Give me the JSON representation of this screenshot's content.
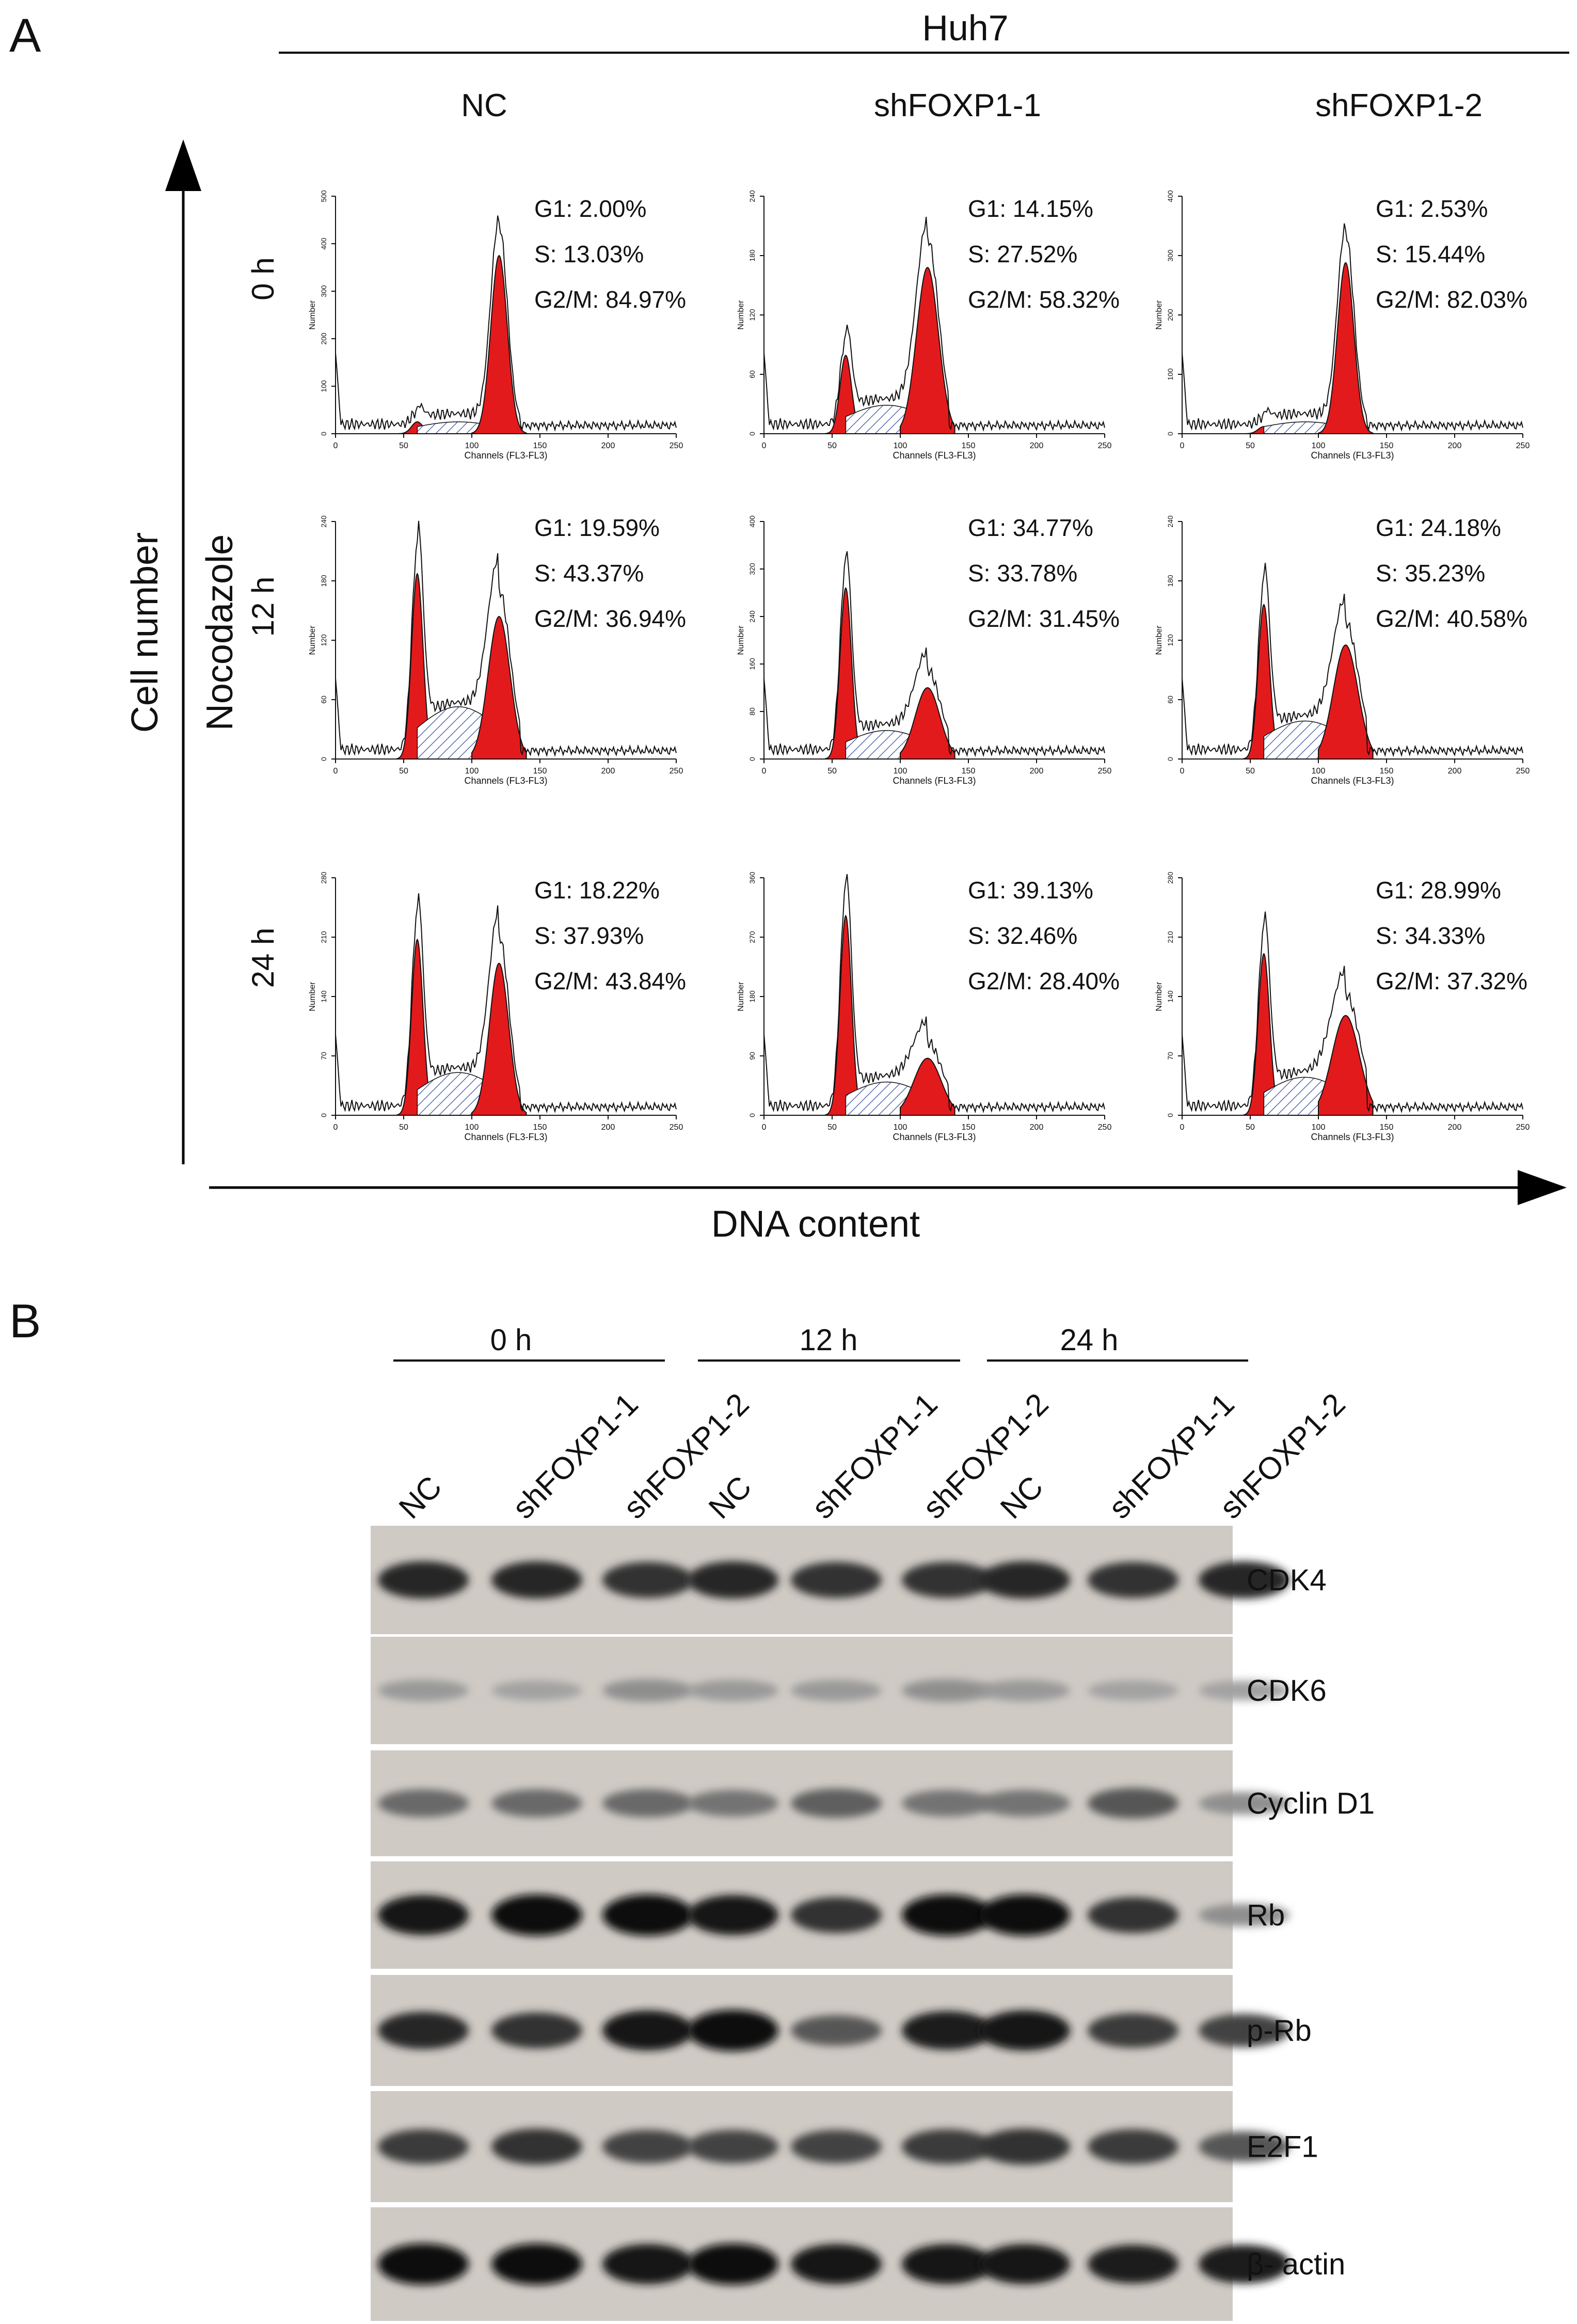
{
  "figure": {
    "panel_a_label": "A",
    "panel_b_label": "B",
    "cell_line": "Huh7",
    "y_axis_label": "Cell number",
    "x_axis_label": "DNA content",
    "treatment_label": "Nocodazole",
    "columns": [
      "NC",
      "shFOXP1-1",
      "shFOXP1-2"
    ],
    "rows": [
      "0 h",
      "12 h",
      "24 h"
    ]
  },
  "histogram_text": {
    "x_axis_title": "Channels (FL3-FL3)",
    "y_axis_title": "Number"
  },
  "histograms": [
    {
      "row": 0,
      "col": 0,
      "G1": "G1: 2.00%",
      "S": "S: 13.03%",
      "G2M": "G2/M: 84.97%",
      "xmax": 250,
      "yticks": [
        "0",
        "100",
        "200",
        "300",
        "400",
        "500"
      ],
      "xticks": [
        "0",
        "50",
        "100",
        "150",
        "200",
        "250"
      ]
    },
    {
      "row": 0,
      "col": 1,
      "G1": "G1: 14.15%",
      "S": "S: 27.52%",
      "G2M": "G2/M: 58.32%",
      "xmax": 250,
      "yticks": [
        "0",
        "60",
        "120",
        "180",
        "240"
      ],
      "xticks": [
        "0",
        "50",
        "100",
        "150",
        "200",
        "250"
      ]
    },
    {
      "row": 0,
      "col": 2,
      "G1": "G1: 2.53%",
      "S": "S: 15.44%",
      "G2M": "G2/M: 82.03%",
      "xmax": 250,
      "yticks": [
        "0",
        "100",
        "200",
        "300",
        "400"
      ],
      "xticks": [
        "0",
        "50",
        "100",
        "150",
        "200",
        "250"
      ]
    },
    {
      "row": 1,
      "col": 0,
      "G1": "G1: 19.59%",
      "S": "S: 43.37%",
      "G2M": "G2/M: 36.94%",
      "xmax": 250,
      "yticks": [
        "0",
        "60",
        "120",
        "180",
        "240"
      ],
      "xticks": [
        "0",
        "50",
        "100",
        "150",
        "200",
        "250"
      ]
    },
    {
      "row": 1,
      "col": 1,
      "G1": "G1: 34.77%",
      "S": "S: 33.78%",
      "G2M": "G2/M: 31.45%",
      "xmax": 250,
      "yticks": [
        "0",
        "80",
        "160",
        "240",
        "320",
        "400"
      ],
      "xticks": [
        "0",
        "50",
        "100",
        "150",
        "200",
        "250"
      ]
    },
    {
      "row": 1,
      "col": 2,
      "G1": "G1: 24.18%",
      "S": "S: 35.23%",
      "G2M": "G2/M: 40.58%",
      "xmax": 250,
      "yticks": [
        "0",
        "60",
        "120",
        "180",
        "240"
      ],
      "xticks": [
        "0",
        "50",
        "100",
        "150",
        "200",
        "250"
      ]
    },
    {
      "row": 2,
      "col": 0,
      "G1": "G1: 18.22%",
      "S": "S: 37.93%",
      "G2M": "G2/M: 43.84%",
      "xmax": 250,
      "yticks": [
        "0",
        "70",
        "140",
        "210",
        "280"
      ],
      "xticks": [
        "0",
        "50",
        "100",
        "150",
        "200",
        "250"
      ]
    },
    {
      "row": 2,
      "col": 1,
      "G1": "G1: 39.13%",
      "S": "S: 32.46%",
      "G2M": "G2/M: 28.40%",
      "xmax": 250,
      "yticks": [
        "0",
        "90",
        "180",
        "270",
        "360"
      ],
      "xticks": [
        "0",
        "50",
        "100",
        "150",
        "200",
        "250"
      ]
    },
    {
      "row": 2,
      "col": 2,
      "G1": "G1: 28.99%",
      "S": "S: 34.33%",
      "G2M": "G2/M: 37.32%",
      "xmax": 250,
      "yticks": [
        "0",
        "70",
        "140",
        "210",
        "280"
      ],
      "xticks": [
        "0",
        "50",
        "100",
        "150",
        "200",
        "250"
      ]
    }
  ],
  "western": {
    "time_groups": [
      "0 h",
      "12 h",
      "24 h"
    ],
    "lanes": [
      "NC",
      "shFOXP1-1",
      "shFOXP1-2",
      "NC",
      "shFOXP1-1",
      "shFOXP1-2",
      "NC",
      "shFOXP1-1",
      "shFOXP1-2"
    ],
    "proteins": [
      "CDK4",
      "CDK6",
      "Cyclin D1",
      "Rb",
      "p-Rb",
      "E2F1",
      "β- actin"
    ],
    "band_intensity": [
      [
        0.85,
        0.85,
        0.8,
        0.85,
        0.8,
        0.8,
        0.85,
        0.8,
        0.85
      ],
      [
        0.25,
        0.2,
        0.3,
        0.25,
        0.25,
        0.3,
        0.25,
        0.2,
        0.2
      ],
      [
        0.5,
        0.5,
        0.5,
        0.45,
        0.55,
        0.45,
        0.45,
        0.6,
        0.3
      ],
      [
        0.95,
        1.0,
        1.0,
        0.95,
        0.8,
        1.0,
        1.0,
        0.8,
        0.3
      ],
      [
        0.85,
        0.8,
        0.95,
        1.0,
        0.6,
        0.9,
        0.95,
        0.75,
        0.7
      ],
      [
        0.75,
        0.8,
        0.7,
        0.7,
        0.7,
        0.75,
        0.8,
        0.75,
        0.6
      ],
      [
        1.0,
        1.0,
        0.95,
        1.0,
        0.95,
        0.95,
        0.95,
        0.9,
        0.9
      ]
    ]
  }
}
